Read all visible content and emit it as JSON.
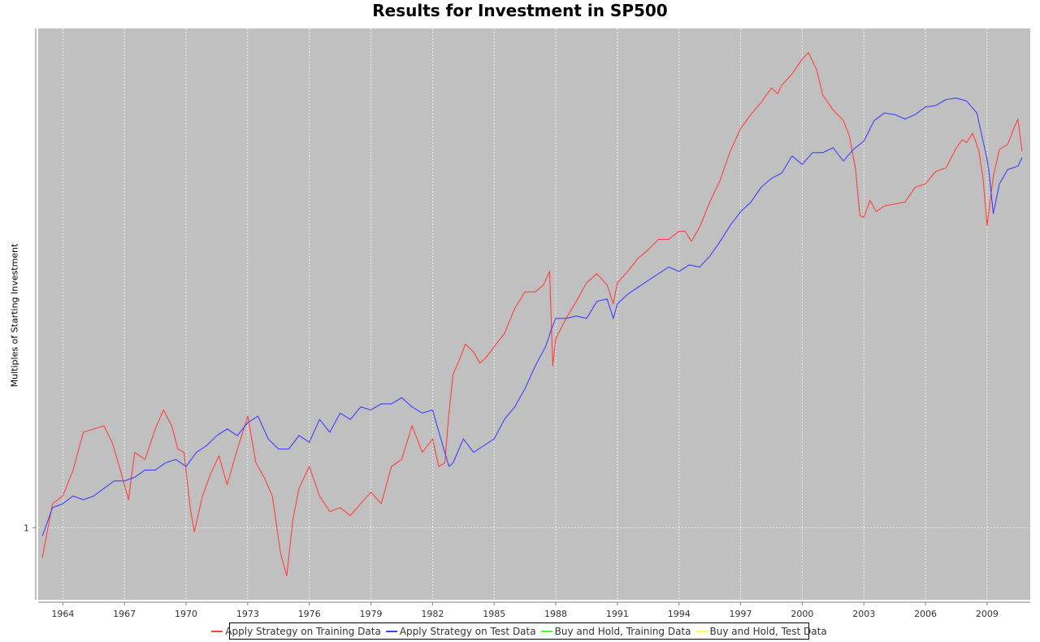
{
  "chart_data": {
    "type": "line",
    "title": "Results for Investment in SP500",
    "xlabel": "",
    "ylabel": "Multiples of Starting Investment",
    "x_ticks": [
      "1964",
      "1967",
      "1970",
      "1973",
      "1976",
      "1979",
      "1982",
      "1985",
      "1988",
      "1991",
      "1994",
      "1997",
      "2000",
      "2003",
      "2006",
      "2009"
    ],
    "y_ticks": [
      "1"
    ],
    "x_range": [
      1962.8,
      2011.1
    ],
    "y_scale": "log",
    "grid": true,
    "legend_position": "bottom",
    "series": [
      {
        "name": "Apply Strategy on Training Data",
        "color": "#ff4040",
        "x": [
          1963.0,
          1963.5,
          1964.0,
          1964.5,
          1965.0,
          1965.5,
          1966.0,
          1966.4,
          1966.8,
          1967.2,
          1967.5,
          1968.0,
          1968.5,
          1968.9,
          1969.3,
          1969.6,
          1969.9,
          1970.2,
          1970.4,
          1970.8,
          1971.2,
          1971.6,
          1972.0,
          1972.5,
          1973.0,
          1973.4,
          1973.8,
          1974.2,
          1974.6,
          1974.9,
          1975.2,
          1975.5,
          1976.0,
          1976.5,
          1977.0,
          1977.5,
          1978.0,
          1978.5,
          1979.0,
          1979.5,
          1980.0,
          1980.5,
          1981.0,
          1981.5,
          1982.0,
          1982.3,
          1982.6,
          1982.8,
          1983.0,
          1983.3,
          1983.6,
          1984.0,
          1984.3,
          1984.6,
          1985.0,
          1985.5,
          1986.0,
          1986.5,
          1987.0,
          1987.4,
          1987.7,
          1987.85,
          1988.0,
          1988.5,
          1989.0,
          1989.5,
          1990.0,
          1990.5,
          1990.8,
          1991.0,
          1991.5,
          1992.0,
          1992.5,
          1993.0,
          1993.5,
          1994.0,
          1994.3,
          1994.6,
          1995.0,
          1995.5,
          1996.0,
          1996.5,
          1997.0,
          1997.5,
          1998.0,
          1998.5,
          1998.8,
          1999.0,
          1999.5,
          2000.0,
          2000.3,
          2000.7,
          2001.0,
          2001.5,
          2002.0,
          2002.3,
          2002.6,
          2002.8,
          2003.0,
          2003.3,
          2003.6,
          2004.0,
          2004.5,
          2005.0,
          2005.5,
          2006.0,
          2006.5,
          2007.0,
          2007.5,
          2007.8,
          2008.0,
          2008.3,
          2008.6,
          2008.8,
          2009.0,
          2009.3,
          2009.6,
          2010.0,
          2010.3,
          2010.5,
          2010.7
        ],
        "y": [
          0.93,
          1.06,
          1.08,
          1.15,
          1.26,
          1.27,
          1.28,
          1.23,
          1.15,
          1.07,
          1.2,
          1.18,
          1.27,
          1.33,
          1.28,
          1.21,
          1.2,
          1.05,
          0.99,
          1.08,
          1.14,
          1.19,
          1.11,
          1.21,
          1.31,
          1.17,
          1.13,
          1.08,
          0.94,
          0.89,
          1.02,
          1.1,
          1.16,
          1.08,
          1.04,
          1.05,
          1.03,
          1.06,
          1.09,
          1.06,
          1.16,
          1.18,
          1.28,
          1.2,
          1.24,
          1.16,
          1.17,
          1.32,
          1.45,
          1.5,
          1.56,
          1.53,
          1.49,
          1.51,
          1.55,
          1.6,
          1.7,
          1.77,
          1.77,
          1.8,
          1.86,
          1.48,
          1.58,
          1.66,
          1.73,
          1.81,
          1.85,
          1.8,
          1.72,
          1.81,
          1.86,
          1.92,
          1.96,
          2.01,
          2.01,
          2.05,
          2.05,
          2.0,
          2.07,
          2.2,
          2.32,
          2.49,
          2.63,
          2.72,
          2.8,
          2.9,
          2.86,
          2.92,
          3.0,
          3.11,
          3.16,
          3.03,
          2.85,
          2.75,
          2.68,
          2.58,
          2.38,
          2.13,
          2.12,
          2.21,
          2.15,
          2.18,
          2.19,
          2.2,
          2.28,
          2.3,
          2.37,
          2.39,
          2.51,
          2.56,
          2.54,
          2.6,
          2.49,
          2.33,
          2.08,
          2.34,
          2.5,
          2.53,
          2.63,
          2.69,
          2.49
        ]
      },
      {
        "name": "Apply Strategy on Test Data",
        "color": "#4040ff",
        "x": [
          1963.0,
          1963.5,
          1964.0,
          1964.5,
          1965.0,
          1965.5,
          1966.0,
          1966.5,
          1967.0,
          1967.5,
          1968.0,
          1968.5,
          1969.0,
          1969.5,
          1970.0,
          1970.5,
          1971.0,
          1971.5,
          1972.0,
          1972.5,
          1973.0,
          1973.5,
          1974.0,
          1974.5,
          1975.0,
          1975.5,
          1976.0,
          1976.5,
          1977.0,
          1977.5,
          1978.0,
          1978.5,
          1979.0,
          1979.5,
          1980.0,
          1980.5,
          1981.0,
          1981.5,
          1982.0,
          1982.5,
          1982.8,
          1983.0,
          1983.5,
          1984.0,
          1984.5,
          1985.0,
          1985.5,
          1986.0,
          1986.5,
          1987.0,
          1987.5,
          1987.8,
          1988.0,
          1988.5,
          1989.0,
          1989.5,
          1990.0,
          1990.5,
          1990.8,
          1991.0,
          1991.5,
          1992.0,
          1992.5,
          1993.0,
          1993.5,
          1994.0,
          1994.5,
          1995.0,
          1995.5,
          1996.0,
          1996.5,
          1997.0,
          1997.5,
          1998.0,
          1998.5,
          1999.0,
          1999.5,
          2000.0,
          2000.5,
          2001.0,
          2001.5,
          2002.0,
          2002.5,
          2003.0,
          2003.5,
          2004.0,
          2004.5,
          2005.0,
          2005.5,
          2006.0,
          2006.5,
          2007.0,
          2007.5,
          2008.0,
          2008.5,
          2009.0,
          2009.1,
          2009.3,
          2009.6,
          2010.0,
          2010.5,
          2010.7
        ],
        "y": [
          0.98,
          1.05,
          1.06,
          1.08,
          1.07,
          1.08,
          1.1,
          1.12,
          1.12,
          1.13,
          1.15,
          1.15,
          1.17,
          1.18,
          1.16,
          1.2,
          1.22,
          1.25,
          1.27,
          1.25,
          1.29,
          1.31,
          1.24,
          1.21,
          1.21,
          1.25,
          1.23,
          1.3,
          1.26,
          1.32,
          1.3,
          1.34,
          1.33,
          1.35,
          1.35,
          1.37,
          1.34,
          1.32,
          1.33,
          1.22,
          1.16,
          1.17,
          1.24,
          1.2,
          1.22,
          1.24,
          1.3,
          1.34,
          1.4,
          1.48,
          1.55,
          1.62,
          1.66,
          1.66,
          1.67,
          1.66,
          1.73,
          1.74,
          1.66,
          1.72,
          1.76,
          1.79,
          1.82,
          1.85,
          1.88,
          1.86,
          1.89,
          1.88,
          1.93,
          2.0,
          2.08,
          2.15,
          2.2,
          2.28,
          2.33,
          2.36,
          2.46,
          2.41,
          2.48,
          2.48,
          2.51,
          2.43,
          2.5,
          2.55,
          2.68,
          2.73,
          2.72,
          2.69,
          2.72,
          2.77,
          2.78,
          2.82,
          2.83,
          2.81,
          2.73,
          2.44,
          2.36,
          2.14,
          2.3,
          2.38,
          2.4,
          2.45
        ]
      },
      {
        "name": "Buy and Hold, Training Data",
        "color": "#40ff40",
        "x": [],
        "y": []
      },
      {
        "name": "Buy and Hold, Test Data",
        "color": "#ffff40",
        "x": [],
        "y": []
      }
    ]
  }
}
